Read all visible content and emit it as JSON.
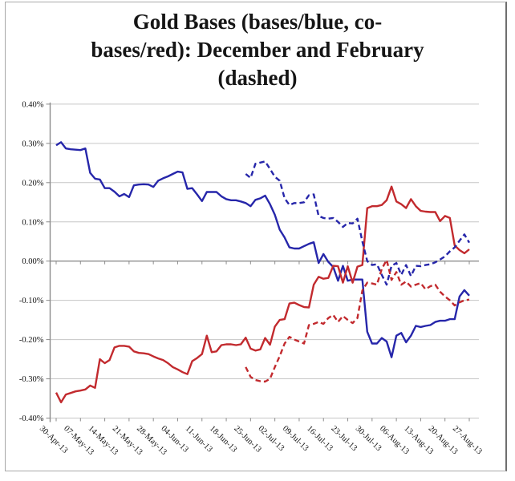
{
  "chart_data": {
    "type": "line",
    "title": "Gold Bases (bases/blue, co-bases/red): December and February (dashed)",
    "title_lines": [
      "Gold Bases (bases/blue, co-",
      "bases/red): December and February",
      "(dashed)"
    ],
    "xlabel": "",
    "ylabel": "",
    "ylim": [
      -0.4,
      0.4
    ],
    "grid": true,
    "legend_position": "none",
    "colors": {
      "basis_blue": "#2626aa",
      "cobasis_red": "#c22a2e"
    },
    "y_ticks": [
      {
        "label": "0.40%",
        "value": 0.4
      },
      {
        "label": "0.30%",
        "value": 0.3
      },
      {
        "label": "0.20%",
        "value": 0.2
      },
      {
        "label": "0.10%",
        "value": 0.1
      },
      {
        "label": "0.00%",
        "value": 0.0
      },
      {
        "label": "-0.10%",
        "value": -0.1
      },
      {
        "label": "-0.20%",
        "value": -0.2
      },
      {
        "label": "-0.30%",
        "value": -0.3
      },
      {
        "label": "-0.40%",
        "value": -0.4
      }
    ],
    "x_ticks": [
      "30-Apr-13",
      "07-May-13",
      "14-May-13",
      "21-May-13",
      "28-May-13",
      "04-Jun-13",
      "11-Jun-13",
      "18-Jun-13",
      "25-Jun-13",
      "02-Jul-13",
      "09-Jul-13",
      "16-Jul-13",
      "23-Jul-13",
      "30-Jul-13",
      "06-Aug-13",
      "13-Aug-13",
      "20-Aug-13",
      "27-Aug-13"
    ],
    "series": [
      {
        "name": "december-basis",
        "label": "bases/blue: December (solid)",
        "color": "#2626aa",
        "dash": "solid",
        "points": [
          [
            0,
            0.295
          ],
          [
            1,
            0.303
          ],
          [
            2,
            0.287
          ],
          [
            3,
            0.285
          ],
          [
            4,
            0.284
          ],
          [
            5,
            0.283
          ],
          [
            6,
            0.287
          ],
          [
            7,
            0.225
          ],
          [
            8,
            0.21
          ],
          [
            9,
            0.208
          ],
          [
            10,
            0.186
          ],
          [
            11,
            0.186
          ],
          [
            12,
            0.177
          ],
          [
            13,
            0.165
          ],
          [
            14,
            0.171
          ],
          [
            15,
            0.163
          ],
          [
            16,
            0.193
          ],
          [
            17,
            0.195
          ],
          [
            18,
            0.196
          ],
          [
            19,
            0.195
          ],
          [
            20,
            0.189
          ],
          [
            21,
            0.205
          ],
          [
            22,
            0.211
          ],
          [
            23,
            0.216
          ],
          [
            24,
            0.222
          ],
          [
            25,
            0.228
          ],
          [
            26,
            0.226
          ],
          [
            27,
            0.184
          ],
          [
            28,
            0.186
          ],
          [
            29,
            0.17
          ],
          [
            30,
            0.153
          ],
          [
            31,
            0.176
          ],
          [
            32,
            0.176
          ],
          [
            33,
            0.176
          ],
          [
            34,
            0.165
          ],
          [
            35,
            0.158
          ],
          [
            36,
            0.155
          ],
          [
            37,
            0.155
          ],
          [
            38,
            0.152
          ],
          [
            39,
            0.148
          ],
          [
            40,
            0.14
          ],
          [
            41,
            0.156
          ],
          [
            42,
            0.16
          ],
          [
            43,
            0.167
          ],
          [
            44,
            0.145
          ],
          [
            45,
            0.118
          ],
          [
            46,
            0.08
          ],
          [
            47,
            0.06
          ],
          [
            48,
            0.035
          ],
          [
            49,
            0.032
          ],
          [
            50,
            0.032
          ],
          [
            51,
            0.038
          ],
          [
            52,
            0.044
          ],
          [
            53,
            0.048
          ],
          [
            54,
            -0.005
          ],
          [
            55,
            0.018
          ],
          [
            56,
            -0.002
          ],
          [
            57,
            -0.015
          ],
          [
            58,
            -0.05
          ],
          [
            59,
            -0.012
          ],
          [
            60,
            -0.05
          ],
          [
            61,
            -0.047
          ],
          [
            62,
            -0.047
          ],
          [
            63,
            -0.047
          ],
          [
            64,
            -0.18
          ],
          [
            65,
            -0.21
          ],
          [
            66,
            -0.21
          ],
          [
            67,
            -0.196
          ],
          [
            68,
            -0.205
          ],
          [
            69,
            -0.245
          ],
          [
            70,
            -0.19
          ],
          [
            71,
            -0.183
          ],
          [
            72,
            -0.207
          ],
          [
            73,
            -0.19
          ],
          [
            74,
            -0.165
          ],
          [
            75,
            -0.168
          ],
          [
            76,
            -0.165
          ],
          [
            77,
            -0.163
          ],
          [
            78,
            -0.155
          ],
          [
            79,
            -0.152
          ],
          [
            80,
            -0.152
          ],
          [
            81,
            -0.148
          ],
          [
            82,
            -0.148
          ],
          [
            83,
            -0.09
          ],
          [
            84,
            -0.074
          ],
          [
            85,
            -0.088
          ]
        ]
      },
      {
        "name": "december-cobasis",
        "label": "co-bases/red: December (solid)",
        "color": "#c22a2e",
        "dash": "solid",
        "points": [
          [
            0,
            -0.335
          ],
          [
            1,
            -0.36
          ],
          [
            2,
            -0.34
          ],
          [
            3,
            -0.336
          ],
          [
            4,
            -0.332
          ],
          [
            5,
            -0.33
          ],
          [
            6,
            -0.327
          ],
          [
            7,
            -0.317
          ],
          [
            8,
            -0.323
          ],
          [
            9,
            -0.25
          ],
          [
            10,
            -0.26
          ],
          [
            11,
            -0.252
          ],
          [
            12,
            -0.22
          ],
          [
            13,
            -0.216
          ],
          [
            14,
            -0.216
          ],
          [
            15,
            -0.218
          ],
          [
            16,
            -0.23
          ],
          [
            17,
            -0.234
          ],
          [
            18,
            -0.235
          ],
          [
            19,
            -0.237
          ],
          [
            20,
            -0.243
          ],
          [
            21,
            -0.248
          ],
          [
            22,
            -0.252
          ],
          [
            23,
            -0.26
          ],
          [
            24,
            -0.27
          ],
          [
            25,
            -0.276
          ],
          [
            26,
            -0.283
          ],
          [
            27,
            -0.288
          ],
          [
            28,
            -0.255
          ],
          [
            29,
            -0.247
          ],
          [
            30,
            -0.237
          ],
          [
            31,
            -0.19
          ],
          [
            32,
            -0.232
          ],
          [
            33,
            -0.23
          ],
          [
            34,
            -0.214
          ],
          [
            35,
            -0.212
          ],
          [
            36,
            -0.212
          ],
          [
            37,
            -0.214
          ],
          [
            38,
            -0.212
          ],
          [
            39,
            -0.195
          ],
          [
            40,
            -0.223
          ],
          [
            41,
            -0.228
          ],
          [
            42,
            -0.225
          ],
          [
            43,
            -0.196
          ],
          [
            44,
            -0.213
          ],
          [
            45,
            -0.167
          ],
          [
            46,
            -0.15
          ],
          [
            47,
            -0.148
          ],
          [
            48,
            -0.108
          ],
          [
            49,
            -0.106
          ],
          [
            50,
            -0.112
          ],
          [
            51,
            -0.117
          ],
          [
            52,
            -0.118
          ],
          [
            53,
            -0.06
          ],
          [
            54,
            -0.04
          ],
          [
            55,
            -0.045
          ],
          [
            56,
            -0.043
          ],
          [
            57,
            -0.012
          ],
          [
            58,
            -0.013
          ],
          [
            59,
            -0.055
          ],
          [
            60,
            -0.013
          ],
          [
            61,
            -0.055
          ],
          [
            62,
            -0.014
          ],
          [
            63,
            -0.01
          ],
          [
            64,
            0.135
          ],
          [
            65,
            0.14
          ],
          [
            66,
            0.14
          ],
          [
            67,
            0.143
          ],
          [
            68,
            0.155
          ],
          [
            69,
            0.19
          ],
          [
            70,
            0.152
          ],
          [
            71,
            0.145
          ],
          [
            72,
            0.135
          ],
          [
            73,
            0.158
          ],
          [
            74,
            0.14
          ],
          [
            75,
            0.128
          ],
          [
            76,
            0.126
          ],
          [
            77,
            0.125
          ],
          [
            78,
            0.125
          ],
          [
            79,
            0.102
          ],
          [
            80,
            0.115
          ],
          [
            81,
            0.11
          ],
          [
            82,
            0.04
          ],
          [
            83,
            0.028
          ],
          [
            84,
            0.02
          ],
          [
            85,
            0.03
          ]
        ]
      },
      {
        "name": "february-basis",
        "label": "bases/blue: February (dashed)",
        "color": "#2626aa",
        "dash": "dashed",
        "points": [
          [
            39,
            0.222
          ],
          [
            40,
            0.212
          ],
          [
            41,
            0.248
          ],
          [
            42,
            0.251
          ],
          [
            43,
            0.254
          ],
          [
            44,
            0.235
          ],
          [
            45,
            0.215
          ],
          [
            46,
            0.205
          ],
          [
            47,
            0.16
          ],
          [
            48,
            0.143
          ],
          [
            49,
            0.148
          ],
          [
            50,
            0.148
          ],
          [
            51,
            0.15
          ],
          [
            52,
            0.168
          ],
          [
            53,
            0.17
          ],
          [
            54,
            0.115
          ],
          [
            55,
            0.11
          ],
          [
            56,
            0.108
          ],
          [
            57,
            0.11
          ],
          [
            58,
            0.1
          ],
          [
            59,
            0.087
          ],
          [
            60,
            0.097
          ],
          [
            61,
            0.096
          ],
          [
            62,
            0.108
          ],
          [
            63,
            0.05
          ],
          [
            64,
            0.0
          ],
          [
            65,
            -0.01
          ],
          [
            66,
            -0.008
          ],
          [
            67,
            -0.035
          ],
          [
            68,
            -0.06
          ],
          [
            69,
            -0.012
          ],
          [
            70,
            -0.005
          ],
          [
            71,
            -0.035
          ],
          [
            72,
            -0.01
          ],
          [
            73,
            -0.038
          ],
          [
            74,
            -0.012
          ],
          [
            75,
            -0.013
          ],
          [
            76,
            -0.01
          ],
          [
            77,
            -0.008
          ],
          [
            78,
            -0.003
          ],
          [
            79,
            0.004
          ],
          [
            80,
            0.012
          ],
          [
            81,
            0.025
          ],
          [
            82,
            0.035
          ],
          [
            83,
            0.052
          ],
          [
            84,
            0.068
          ],
          [
            85,
            0.047
          ]
        ]
      },
      {
        "name": "february-cobasis",
        "label": "co-bases/red: February (dashed)",
        "color": "#c22a2e",
        "dash": "dashed",
        "points": [
          [
            39,
            -0.27
          ],
          [
            40,
            -0.295
          ],
          [
            41,
            -0.303
          ],
          [
            42,
            -0.306
          ],
          [
            43,
            -0.307
          ],
          [
            44,
            -0.3
          ],
          [
            45,
            -0.27
          ],
          [
            46,
            -0.242
          ],
          [
            47,
            -0.21
          ],
          [
            48,
            -0.193
          ],
          [
            49,
            -0.2
          ],
          [
            50,
            -0.205
          ],
          [
            51,
            -0.21
          ],
          [
            52,
            -0.163
          ],
          [
            53,
            -0.16
          ],
          [
            54,
            -0.155
          ],
          [
            55,
            -0.16
          ],
          [
            56,
            -0.145
          ],
          [
            57,
            -0.137
          ],
          [
            58,
            -0.155
          ],
          [
            59,
            -0.14
          ],
          [
            60,
            -0.15
          ],
          [
            61,
            -0.158
          ],
          [
            62,
            -0.145
          ],
          [
            63,
            -0.075
          ],
          [
            64,
            -0.055
          ],
          [
            65,
            -0.057
          ],
          [
            66,
            -0.06
          ],
          [
            67,
            -0.02
          ],
          [
            68,
            0.003
          ],
          [
            69,
            -0.048
          ],
          [
            70,
            -0.028
          ],
          [
            71,
            -0.06
          ],
          [
            72,
            -0.052
          ],
          [
            73,
            -0.065
          ],
          [
            74,
            -0.06
          ],
          [
            75,
            -0.056
          ],
          [
            76,
            -0.072
          ],
          [
            77,
            -0.064
          ],
          [
            78,
            -0.06
          ],
          [
            79,
            -0.078
          ],
          [
            80,
            -0.09
          ],
          [
            81,
            -0.1
          ],
          [
            82,
            -0.113
          ],
          [
            83,
            -0.105
          ],
          [
            84,
            -0.1
          ],
          [
            85,
            -0.098
          ]
        ]
      }
    ]
  }
}
